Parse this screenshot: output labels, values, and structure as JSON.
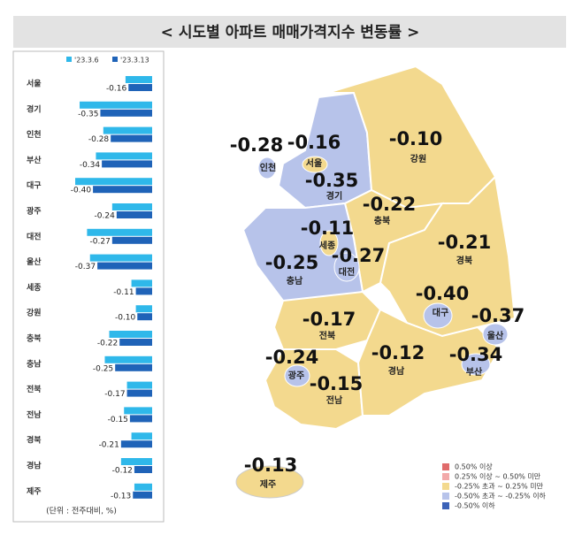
{
  "chart_data": {
    "type": "bar",
    "orientation": "horizontal",
    "title": "< 시도별 아파트 매매가격지수 변동률 >",
    "note": "(단위 : 전주대비, %)",
    "categories": [
      "서울",
      "경기",
      "인천",
      "부산",
      "대구",
      "광주",
      "대전",
      "울산",
      "세종",
      "강원",
      "충북",
      "충남",
      "전북",
      "전남",
      "경북",
      "경남",
      "제주"
    ],
    "xlim": [
      -0.55,
      0
    ],
    "series": [
      {
        "name": "'23.3.6",
        "color": "#2fb8ea",
        "values": [
          -0.18,
          -0.49,
          -0.33,
          -0.38,
          -0.52,
          -0.27,
          -0.44,
          -0.42,
          -0.14,
          -0.11,
          -0.29,
          -0.32,
          -0.17,
          -0.19,
          -0.14,
          -0.21,
          -0.12
        ]
      },
      {
        "name": "'23.3.13",
        "color": "#1f63b8",
        "values": [
          -0.16,
          -0.35,
          -0.28,
          -0.34,
          -0.4,
          -0.24,
          -0.27,
          -0.37,
          -0.11,
          -0.1,
          -0.22,
          -0.25,
          -0.17,
          -0.15,
          -0.21,
          -0.12,
          -0.13
        ],
        "value_labels": [
          "-0.16",
          "-0.35",
          "-0.28",
          "-0.34",
          "-0.40",
          "-0.24",
          "-0.27",
          "-0.37",
          "-0.11",
          "-0.10",
          "-0.22",
          "-0.25",
          "-0.17",
          "-0.15",
          "-0.21",
          "-0.12",
          "-0.13"
        ]
      }
    ],
    "map_legend": [
      {
        "label": "0.50% 이상",
        "color": "#e06b6b"
      },
      {
        "label": "0.25% 이상 ~ 0.50% 미만",
        "color": "#f2a9a9"
      },
      {
        "label": "-0.25% 초과 ~ 0.25% 미만",
        "color": "#f3d98e"
      },
      {
        "label": "-0.50% 초과 ~ -0.25% 이하",
        "color": "#b7c3ea"
      },
      {
        "label": "-0.50% 이하",
        "color": "#3c63b8"
      }
    ]
  }
}
